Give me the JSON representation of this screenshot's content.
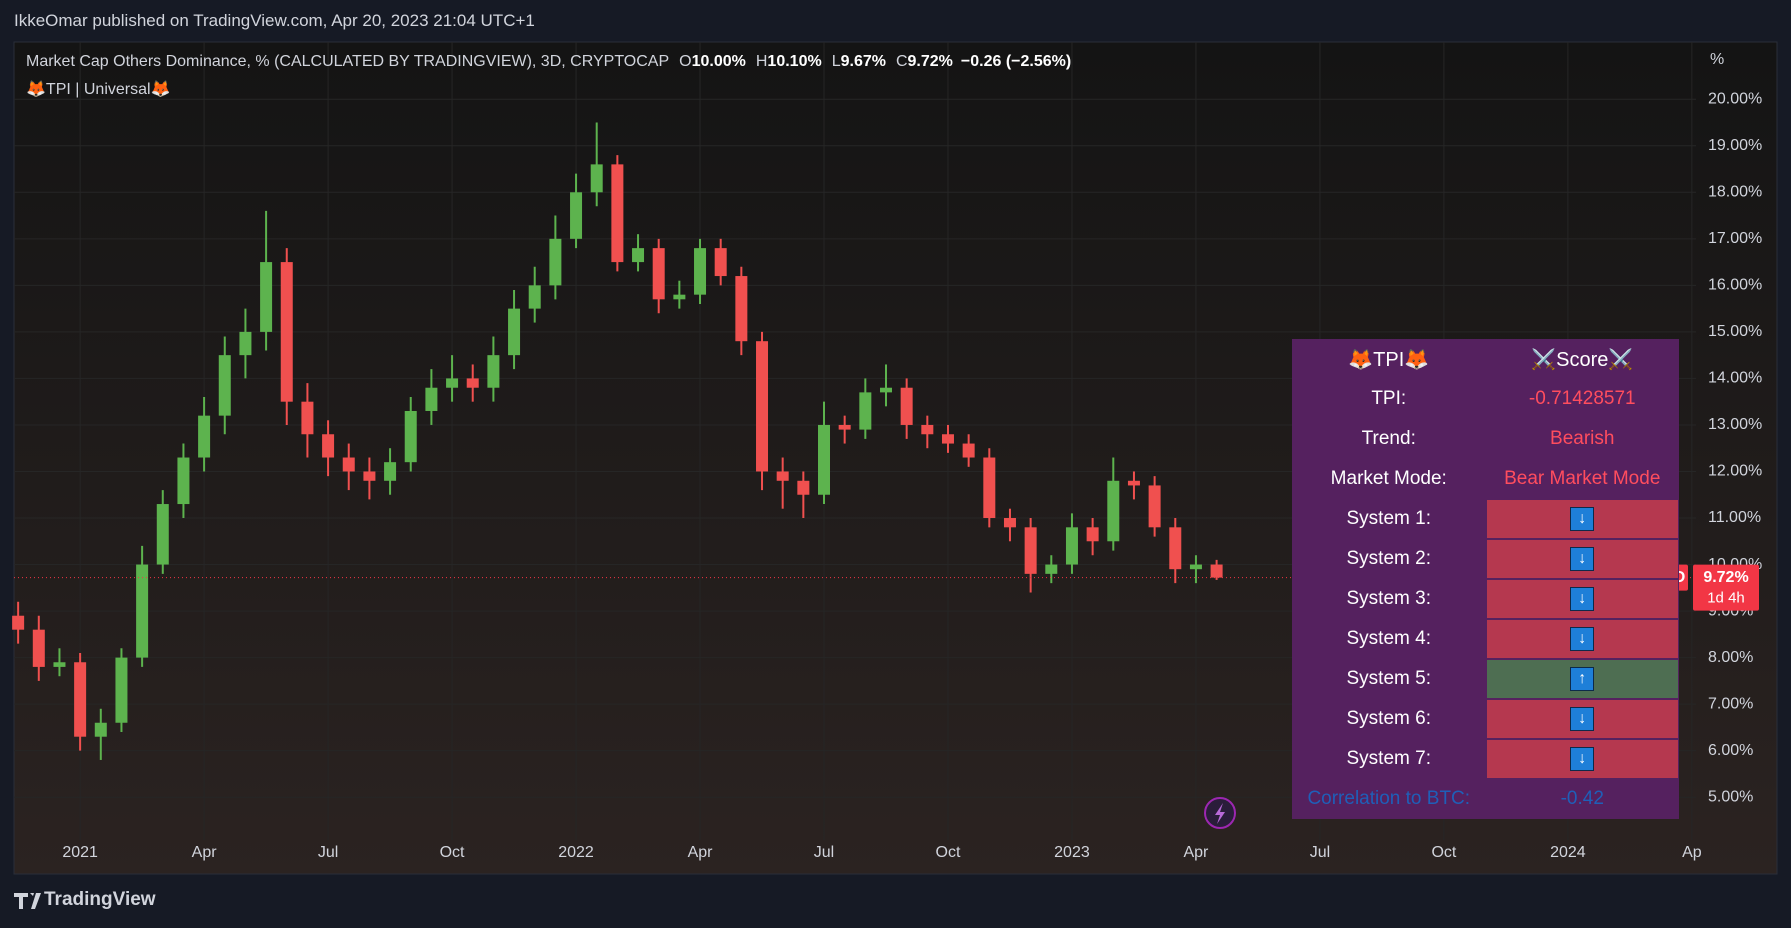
{
  "header": {
    "publisher": "IkkeOmar published on TradingView.com, Apr 20, 2023 21:04 UTC+1"
  },
  "footer": {
    "brand": "TradingView"
  },
  "chart_data": {
    "type": "candlestick",
    "title": "Market Cap Others Dominance, % (CALCULATED BY TRADINGVIEW), 3D, CRYPTOCAP",
    "legend": [
      {
        "key": "O",
        "value": "10.00%"
      },
      {
        "key": "H",
        "value": "10.10%"
      },
      {
        "key": "L",
        "value": "9.67%"
      },
      {
        "key": "C",
        "value": "9.72%"
      }
    ],
    "change": "−0.26 (−2.56%)",
    "indicator": "🦊TPI | Universal🦊",
    "y_unit": "%",
    "up_color": "#5db34e",
    "down_color": "#f0504f",
    "grid": true,
    "x": [
      -1.5,
      -1,
      -0.5,
      0,
      0.5,
      1,
      1.5,
      2,
      2.5,
      3,
      3.5,
      4,
      4.5,
      5,
      5.5,
      6,
      6.5,
      7,
      7.5,
      8,
      8.5,
      9,
      9.5,
      10,
      10.5,
      11,
      11.5,
      12,
      12.5,
      13,
      13.5,
      14,
      14.5,
      15,
      15.5,
      16,
      16.5,
      17,
      17.5,
      18,
      18.5,
      19,
      19.5,
      20,
      20.5,
      21,
      21.5,
      22,
      22.5,
      23,
      23.5,
      24,
      24.5,
      25,
      25.5,
      26,
      26.5,
      27,
      27.5
    ],
    "open": [
      8.9,
      8.6,
      7.8,
      7.9,
      6.3,
      6.6,
      8.0,
      10.0,
      11.3,
      12.3,
      13.2,
      14.5,
      15.0,
      16.5,
      13.5,
      12.8,
      12.3,
      12.0,
      11.8,
      12.2,
      13.3,
      13.8,
      14.0,
      13.8,
      14.5,
      15.5,
      16.0,
      17.0,
      18.0,
      18.6,
      16.5,
      16.8,
      15.7,
      15.8,
      16.8,
      16.2,
      14.8,
      12.0,
      11.8,
      11.5,
      13.0,
      12.9,
      13.7,
      13.8,
      13.0,
      12.8,
      12.6,
      12.3,
      11.0,
      10.8,
      9.8,
      10.0,
      10.8,
      10.5,
      11.8,
      11.7,
      10.8,
      9.9,
      10.0
    ],
    "high": [
      9.2,
      8.9,
      8.2,
      8.1,
      6.9,
      8.2,
      10.4,
      11.6,
      12.6,
      13.6,
      14.9,
      15.5,
      17.6,
      16.8,
      13.9,
      13.1,
      12.6,
      12.3,
      12.5,
      13.6,
      14.2,
      14.5,
      14.3,
      14.9,
      15.9,
      16.4,
      17.5,
      18.4,
      19.5,
      18.8,
      17.1,
      17.0,
      16.1,
      17.0,
      17.0,
      16.4,
      15.0,
      12.3,
      12.0,
      13.5,
      13.2,
      14.0,
      14.3,
      14.0,
      13.2,
      13.0,
      12.8,
      12.5,
      11.2,
      11.0,
      10.2,
      11.1,
      11.0,
      12.3,
      12.0,
      11.9,
      11.0,
      10.2,
      10.1
    ],
    "low": [
      8.3,
      7.5,
      7.6,
      6.0,
      5.8,
      6.4,
      7.8,
      9.8,
      11.0,
      12.0,
      12.8,
      14.0,
      14.6,
      13.0,
      12.3,
      11.9,
      11.6,
      11.4,
      11.5,
      12.0,
      13.0,
      13.5,
      13.5,
      13.5,
      14.2,
      15.2,
      15.7,
      16.8,
      17.7,
      16.3,
      16.3,
      15.4,
      15.5,
      15.6,
      16.0,
      14.5,
      11.6,
      11.2,
      11.0,
      11.3,
      12.6,
      12.7,
      13.4,
      12.7,
      12.5,
      12.4,
      12.1,
      10.8,
      10.5,
      9.4,
      9.6,
      9.8,
      10.2,
      10.3,
      11.4,
      10.6,
      9.6,
      9.6,
      9.67
    ],
    "close": [
      8.6,
      7.8,
      7.9,
      6.3,
      6.6,
      8.0,
      10.0,
      11.3,
      12.3,
      13.2,
      14.5,
      15.0,
      16.5,
      13.5,
      12.8,
      12.3,
      12.0,
      11.8,
      12.2,
      13.3,
      13.8,
      14.0,
      13.8,
      14.5,
      15.5,
      16.0,
      17.0,
      18.0,
      18.6,
      16.5,
      16.8,
      15.7,
      15.8,
      16.8,
      16.2,
      14.8,
      12.0,
      11.8,
      11.5,
      13.0,
      12.9,
      13.7,
      13.8,
      13.0,
      12.8,
      12.6,
      12.3,
      11.0,
      10.8,
      9.8,
      10.0,
      10.8,
      10.5,
      11.8,
      11.7,
      10.8,
      9.9,
      10.0,
      9.72
    ],
    "xlim": [
      -1.6,
      39.1
    ],
    "xticks": [
      {
        "value": 0,
        "label": "2021"
      },
      {
        "value": 3,
        "label": "Apr"
      },
      {
        "value": 6,
        "label": "Jul"
      },
      {
        "value": 9,
        "label": "Oct"
      },
      {
        "value": 12,
        "label": "2022"
      },
      {
        "value": 15,
        "label": "Apr"
      },
      {
        "value": 18,
        "label": "Jul"
      },
      {
        "value": 21,
        "label": "Oct"
      },
      {
        "value": 24,
        "label": "2023"
      },
      {
        "value": 27,
        "label": "Apr"
      },
      {
        "value": 30,
        "label": "Jul"
      },
      {
        "value": 33,
        "label": "Oct"
      },
      {
        "value": 36,
        "label": "2024"
      },
      {
        "value": 39,
        "label": "Ap"
      }
    ],
    "ylim": [
      4.08,
      21.23
    ],
    "yticks": [
      {
        "value": 5,
        "label": "5.00%"
      },
      {
        "value": 6,
        "label": "6.00%"
      },
      {
        "value": 7,
        "label": "7.00%"
      },
      {
        "value": 8,
        "label": "8.00%"
      },
      {
        "value": 9,
        "label": "9.00%"
      },
      {
        "value": 10,
        "label": "10.00%"
      },
      {
        "value": 11,
        "label": "11.00%"
      },
      {
        "value": 12,
        "label": "12.00%"
      },
      {
        "value": 13,
        "label": "13.00%"
      },
      {
        "value": 14,
        "label": "14.00%"
      },
      {
        "value": 15,
        "label": "15.00%"
      },
      {
        "value": 16,
        "label": "16.00%"
      },
      {
        "value": 17,
        "label": "17.00%"
      },
      {
        "value": 18,
        "label": "18.00%"
      },
      {
        "value": 19,
        "label": "19.00%"
      },
      {
        "value": 20,
        "label": "20.00%"
      }
    ],
    "last_price": {
      "symbol": "OTHERS.D",
      "value": 9.72,
      "label": "9.72%",
      "countdown": "1d 4h",
      "color": "#f23645"
    }
  },
  "tpi_table": {
    "headers": [
      "🦊TPI🦊",
      "⚔️Score⚔️"
    ],
    "rows": [
      {
        "label": "TPI:",
        "value": "-0.71428571"
      },
      {
        "label": "Trend:",
        "value": "Bearish"
      },
      {
        "label": "Market Mode:",
        "value": "Bear Market Mode"
      }
    ],
    "systems": [
      {
        "label": "System 1:",
        "signal": "↓",
        "color": "#b5384f"
      },
      {
        "label": "System 2:",
        "signal": "↓",
        "color": "#b5384f"
      },
      {
        "label": "System 3:",
        "signal": "↓",
        "color": "#b5384f"
      },
      {
        "label": "System 4:",
        "signal": "↓",
        "color": "#b5384f"
      },
      {
        "label": "System 5:",
        "signal": "↑",
        "color": "#4e6e52"
      },
      {
        "label": "System 6:",
        "signal": "↓",
        "color": "#b5384f"
      },
      {
        "label": "System 7:",
        "signal": "↓",
        "color": "#b5384f"
      }
    ],
    "correlation": {
      "label": "Correlation to BTC:",
      "value": "-0.42"
    }
  }
}
